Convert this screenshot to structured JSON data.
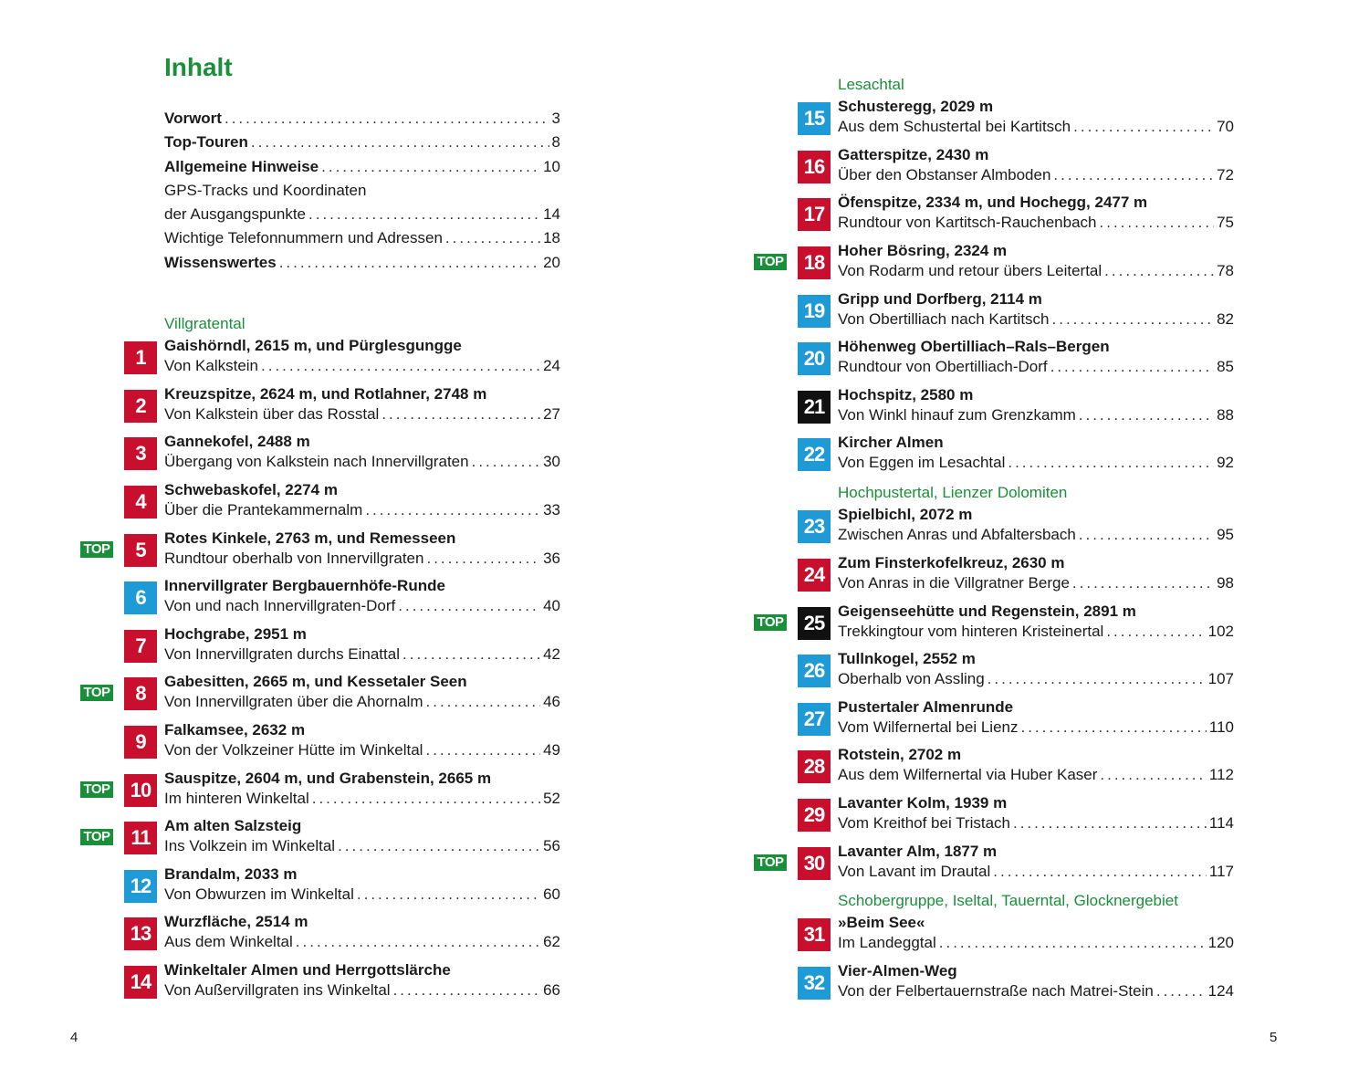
{
  "title": "Inhalt",
  "colors": {
    "red": "#c8102e",
    "blue": "#1e9bd7",
    "black": "#111111",
    "green": "#1a8f3a"
  },
  "front_matter": [
    {
      "label": "Vorwort",
      "page": "3",
      "bold": true
    },
    {
      "label": "Top-Touren",
      "page": "8",
      "bold": true
    },
    {
      "label": "Allgemeine Hinweise",
      "page": "10",
      "bold": true
    },
    {
      "label": "GPS-Tracks und Koordinaten",
      "page": "",
      "bold": false
    },
    {
      "label": "der Ausgangspunkte",
      "page": "14",
      "bold": false
    },
    {
      "label": "Wichtige Telefonnummern und Adressen",
      "page": "18",
      "bold": false
    },
    {
      "label": "Wissenswertes",
      "page": "20",
      "bold": true
    }
  ],
  "top_label": "TOP",
  "left_column": [
    {
      "section": "Villgratental"
    },
    {
      "n": "1",
      "color": "red",
      "title": "Gaishörndl, 2615 m, und Pürglesgungge",
      "sub": "Von Kalkstein",
      "page": "24"
    },
    {
      "n": "2",
      "color": "red",
      "title": "Kreuzspitze, 2624 m, und Rotlahner, 2748 m",
      "sub": "Von Kalkstein über das Rosstal",
      "page": "27"
    },
    {
      "n": "3",
      "color": "red",
      "title": "Gannekofel, 2488 m",
      "sub": "Übergang von Kalkstein nach Innervillgraten",
      "page": "30"
    },
    {
      "n": "4",
      "color": "red",
      "title": "Schwebaskofel, 2274 m",
      "sub": "Über die Prantekammernalm",
      "page": "33"
    },
    {
      "n": "5",
      "color": "red",
      "top": true,
      "title": "Rotes Kinkele, 2763 m, und Remesseen",
      "sub": "Rundtour oberhalb von Innervillgraten",
      "page": "36"
    },
    {
      "n": "6",
      "color": "blue",
      "title": "Innervillgrater Bergbauernhöfe-Runde",
      "sub": "Von und nach Innervillgraten-Dorf",
      "page": "40"
    },
    {
      "n": "7",
      "color": "red",
      "title": "Hochgrabe, 2951 m",
      "sub": "Von Innervillgraten durchs Einattal",
      "page": "42"
    },
    {
      "n": "8",
      "color": "red",
      "top": true,
      "title": "Gabesitten, 2665 m, und Kessetaler Seen",
      "sub": "Von Innervillgraten über die Ahornalm",
      "page": "46"
    },
    {
      "n": "9",
      "color": "red",
      "title": "Falkamsee, 2632 m",
      "sub": "Von der Volkzeiner Hütte im Winkeltal",
      "page": "49"
    },
    {
      "n": "10",
      "color": "red",
      "top": true,
      "title": "Sauspitze, 2604 m, und Grabenstein, 2665 m",
      "sub": "Im hinteren Winkeltal",
      "page": "52"
    },
    {
      "n": "11",
      "color": "red",
      "top": true,
      "title": "Am alten Salzsteig",
      "sub": "Ins Volkzein im Winkeltal",
      "page": "56"
    },
    {
      "n": "12",
      "color": "blue",
      "title": "Brandalm, 2033 m",
      "sub": "Von Obwurzen im Winkeltal",
      "page": "60"
    },
    {
      "n": "13",
      "color": "red",
      "title": "Wurzfläche, 2514 m",
      "sub": "Aus dem Winkeltal",
      "page": "62"
    },
    {
      "n": "14",
      "color": "red",
      "title": "Winkeltaler Almen und Herrgottslärche",
      "sub": "Von Außervillgraten ins Winkeltal",
      "page": "66"
    }
  ],
  "right_column": [
    {
      "section": "Lesachtal"
    },
    {
      "n": "15",
      "color": "blue",
      "title": "Schusteregg, 2029 m",
      "sub": "Aus dem Schustertal bei Kartitsch",
      "page": "70"
    },
    {
      "n": "16",
      "color": "red",
      "title": "Gatterspitze, 2430 m",
      "sub": "Über den Obstanser Almboden",
      "page": "72"
    },
    {
      "n": "17",
      "color": "red",
      "title": "Öfenspitze, 2334 m, und Hochegg, 2477 m",
      "sub": "Rundtour von Kartitsch-Rauchenbach",
      "page": "75"
    },
    {
      "n": "18",
      "color": "red",
      "top": true,
      "title": "Hoher Bösring, 2324 m",
      "sub": "Von Rodarm und retour übers Leitertal",
      "page": "78"
    },
    {
      "n": "19",
      "color": "blue",
      "title": "Gripp und Dorfberg, 2114 m",
      "sub": "Von Obertilliach nach Kartitsch",
      "page": "82"
    },
    {
      "n": "20",
      "color": "blue",
      "title": "Höhenweg Obertilliach–Rals–Bergen",
      "sub": "Rundtour von Obertilliach-Dorf",
      "page": "85"
    },
    {
      "n": "21",
      "color": "black",
      "title": "Hochspitz, 2580 m",
      "sub": "Von Winkl hinauf zum Grenzkamm",
      "page": "88"
    },
    {
      "n": "22",
      "color": "blue",
      "title": "Kircher Almen",
      "sub": "Von Eggen im Lesachtal",
      "page": "92"
    },
    {
      "section": "Hochpustertal, Lienzer Dolomiten"
    },
    {
      "n": "23",
      "color": "blue",
      "title": "Spielbichl, 2072 m",
      "sub": "Zwischen Anras und Abfaltersbach",
      "page": "95"
    },
    {
      "n": "24",
      "color": "red",
      "title": "Zum Finsterkofelkreuz, 2630 m",
      "sub": "Von Anras in die Villgratner Berge",
      "page": "98"
    },
    {
      "n": "25",
      "color": "black",
      "top": true,
      "title": "Geigenseehütte und Regenstein, 2891 m",
      "sub": "Trekkingtour vom hinteren Kristeinertal",
      "page": "102"
    },
    {
      "n": "26",
      "color": "blue",
      "title": "Tullnkogel, 2552 m",
      "sub": "Oberhalb von Assling",
      "page": "107"
    },
    {
      "n": "27",
      "color": "blue",
      "title": "Pustertaler Almenrunde",
      "sub": "Vom Wilfernertal bei Lienz",
      "page": "110"
    },
    {
      "n": "28",
      "color": "red",
      "title": "Rotstein, 2702 m",
      "sub": "Aus dem Wilfernertal via Huber Kaser",
      "page": "112"
    },
    {
      "n": "29",
      "color": "red",
      "title": "Lavanter Kolm, 1939 m",
      "sub": "Vom Kreithof bei Tristach",
      "page": "114"
    },
    {
      "n": "30",
      "color": "red",
      "top": true,
      "title": "Lavanter Alm, 1877 m",
      "sub": "Von Lavant im Drautal",
      "page": "117"
    },
    {
      "section": "Schobergruppe, Iseltal, Tauerntal, Glocknergebiet"
    },
    {
      "n": "31",
      "color": "red",
      "title": "»Beim See«",
      "sub": "Im Landeggtal",
      "page": "120"
    },
    {
      "n": "32",
      "color": "blue",
      "title": "Vier-Almen-Weg",
      "sub": "Von der Felbertauernstraße nach Matrei-Stein",
      "page": "124"
    }
  ],
  "page_numbers": {
    "left": "4",
    "right": "5"
  }
}
